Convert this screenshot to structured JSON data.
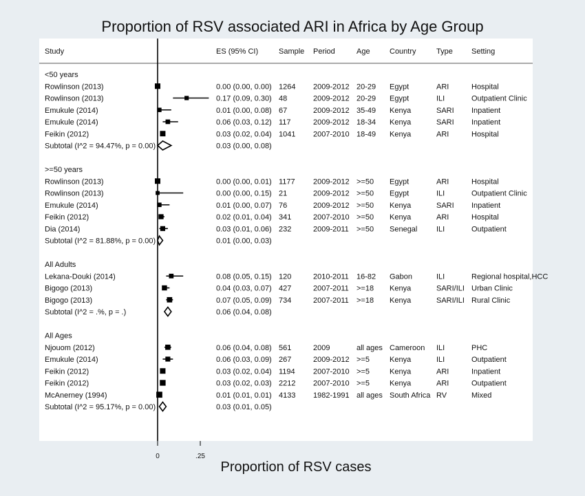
{
  "title": "Proportion of RSV associated ARI in Africa by Age Group",
  "xlabel": "Proportion of RSV cases",
  "columns": [
    "Study",
    "ES (95% CI)",
    "Sample",
    "Period",
    "Age",
    "Country",
    "Type",
    "Setting"
  ],
  "chart_data": {
    "type": "forest",
    "title": "Proportion of RSV associated ARI in Africa by Age Group",
    "xlabel": "Proportion of RSV cases",
    "x_ticks": [
      0,
      0.25
    ],
    "x_tick_labels": [
      "0",
      ".25"
    ],
    "groups": [
      {
        "name": "<50 years",
        "studies": [
          {
            "study": "Rowlinson (2013)",
            "es": 0.0,
            "lo": 0.0,
            "hi": 0.0,
            "es_text": "0.00 (0.00, 0.00)",
            "sample": "1264",
            "period": "2009-2012",
            "age": "20-29",
            "country": "Egypt",
            "type": "ARI",
            "setting": "Hospital"
          },
          {
            "study": "Rowlinson (2013)",
            "es": 0.17,
            "lo": 0.09,
            "hi": 0.3,
            "es_text": "0.17 (0.09, 0.30)",
            "sample": "48",
            "period": "2009-2012",
            "age": "20-29",
            "country": "Egypt",
            "type": "ILI",
            "setting": "Outpatient Clinic"
          },
          {
            "study": "Emukule (2014)",
            "es": 0.01,
            "lo": 0.0,
            "hi": 0.08,
            "es_text": "0.01 (0.00, 0.08)",
            "sample": "67",
            "period": "2009-2012",
            "age": "35-49",
            "country": "Kenya",
            "type": "SARI",
            "setting": "Inpatient"
          },
          {
            "study": "Emukule (2014)",
            "es": 0.06,
            "lo": 0.03,
            "hi": 0.12,
            "es_text": "0.06 (0.03, 0.12)",
            "sample": "117",
            "period": "2009-2012",
            "age": "18-34",
            "country": "Kenya",
            "type": "SARI",
            "setting": "Inpatient"
          },
          {
            "study": "Feikin (2012)",
            "es": 0.03,
            "lo": 0.02,
            "hi": 0.04,
            "es_text": "0.03 (0.02, 0.04)",
            "sample": "1041",
            "period": "2007-2010",
            "age": "18-49",
            "country": "Kenya",
            "type": "ARI",
            "setting": "Hospital"
          }
        ],
        "subtotal": {
          "label": "Subtotal  (I^2 = 94.47%, p = 0.00)",
          "es": 0.03,
          "lo": 0.0,
          "hi": 0.08,
          "es_text": "0.03 (0.00, 0.08)"
        }
      },
      {
        "name": ">=50 years",
        "studies": [
          {
            "study": "Rowlinson (2013)",
            "es": 0.0,
            "lo": 0.0,
            "hi": 0.01,
            "es_text": "0.00 (0.00, 0.01)",
            "sample": "1177",
            "period": "2009-2012",
            "age": ">=50",
            "country": "Egypt",
            "type": "ARI",
            "setting": "Hospital"
          },
          {
            "study": "Rowlinson (2013)",
            "es": 0.0,
            "lo": 0.0,
            "hi": 0.15,
            "es_text": "0.00 (0.00, 0.15)",
            "sample": "21",
            "period": "2009-2012",
            "age": ">=50",
            "country": "Egypt",
            "type": "ILI",
            "setting": "Outpatient Clinic"
          },
          {
            "study": "Emukule (2014)",
            "es": 0.01,
            "lo": 0.0,
            "hi": 0.07,
            "es_text": "0.01 (0.00, 0.07)",
            "sample": "76",
            "period": "2009-2012",
            "age": ">=50",
            "country": "Kenya",
            "type": "SARI",
            "setting": "Inpatient"
          },
          {
            "study": "Feikin (2012)",
            "es": 0.02,
            "lo": 0.01,
            "hi": 0.04,
            "es_text": "0.02 (0.01, 0.04)",
            "sample": "341",
            "period": "2007-2010",
            "age": ">=50",
            "country": "Kenya",
            "type": "ARI",
            "setting": "Hospital"
          },
          {
            "study": "Dia (2014)",
            "es": 0.03,
            "lo": 0.01,
            "hi": 0.06,
            "es_text": "0.03 (0.01, 0.06)",
            "sample": "232",
            "period": "2009-2011",
            "age": ">=50",
            "country": "Senegal",
            "type": "ILI",
            "setting": "Outpatient"
          }
        ],
        "subtotal": {
          "label": "Subtotal  (I^2 = 81.88%, p = 0.00)",
          "es": 0.01,
          "lo": 0.0,
          "hi": 0.03,
          "es_text": "0.01 (0.00, 0.03)"
        }
      },
      {
        "name": "All Adults",
        "studies": [
          {
            "study": "Lekana-Douki (2014)",
            "es": 0.08,
            "lo": 0.05,
            "hi": 0.15,
            "es_text": "0.08 (0.05, 0.15)",
            "sample": "120",
            "period": "2010-2011",
            "age": "16-82",
            "country": "Gabon",
            "type": "ILI",
            "setting": "Regional hospital,HCC"
          },
          {
            "study": "Bigogo (2013)",
            "es": 0.04,
            "lo": 0.03,
            "hi": 0.07,
            "es_text": "0.04 (0.03, 0.07)",
            "sample": "427",
            "period": "2007-2011",
            "age": ">=18",
            "country": "Kenya",
            "type": "SARI/ILI",
            "setting": "Urban Clinic"
          },
          {
            "study": "Bigogo (2013)",
            "es": 0.07,
            "lo": 0.05,
            "hi": 0.09,
            "es_text": "0.07 (0.05, 0.09)",
            "sample": "734",
            "period": "2007-2011",
            "age": ">=18",
            "country": "Kenya",
            "type": "SARI/ILI",
            "setting": "Rural Clinic"
          }
        ],
        "subtotal": {
          "label": "Subtotal  (I^2 = .%, p = .)",
          "es": 0.06,
          "lo": 0.04,
          "hi": 0.08,
          "es_text": "0.06 (0.04, 0.08)"
        }
      },
      {
        "name": "All Ages",
        "studies": [
          {
            "study": "Njouom (2012)",
            "es": 0.06,
            "lo": 0.04,
            "hi": 0.08,
            "es_text": "0.06 (0.04, 0.08)",
            "sample": "561",
            "period": "2009",
            "age": "all ages",
            "country": "Cameroon",
            "type": "ILI",
            "setting": "PHC"
          },
          {
            "study": "Emukule (2014)",
            "es": 0.06,
            "lo": 0.03,
            "hi": 0.09,
            "es_text": "0.06 (0.03, 0.09)",
            "sample": "267",
            "period": "2009-2012",
            "age": ">=5",
            "country": "Kenya",
            "type": "ILI",
            "setting": "Outpatient"
          },
          {
            "study": "Feikin (2012)",
            "es": 0.03,
            "lo": 0.02,
            "hi": 0.04,
            "es_text": "0.03 (0.02, 0.04)",
            "sample": "1194",
            "period": "2007-2010",
            "age": ">=5",
            "country": "Kenya",
            "type": "ARI",
            "setting": "Inpatient"
          },
          {
            "study": "Feikin (2012)",
            "es": 0.03,
            "lo": 0.02,
            "hi": 0.03,
            "es_text": "0.03 (0.02, 0.03)",
            "sample": "2212",
            "period": "2007-2010",
            "age": ">=5",
            "country": "Kenya",
            "type": "ARI",
            "setting": "Outpatient"
          },
          {
            "study": "McAnerney (1994)",
            "es": 0.01,
            "lo": 0.01,
            "hi": 0.01,
            "es_text": "0.01 (0.01, 0.01)",
            "sample": "4133",
            "period": "1982-1991",
            "age": "all ages",
            "country": "South Africa",
            "type": "RV",
            "setting": "Mixed"
          }
        ],
        "subtotal": {
          "label": "Subtotal  (I^2 = 95.17%, p = 0.00)",
          "es": 0.03,
          "lo": 0.01,
          "hi": 0.05,
          "es_text": "0.03 (0.01, 0.05)"
        }
      }
    ]
  }
}
